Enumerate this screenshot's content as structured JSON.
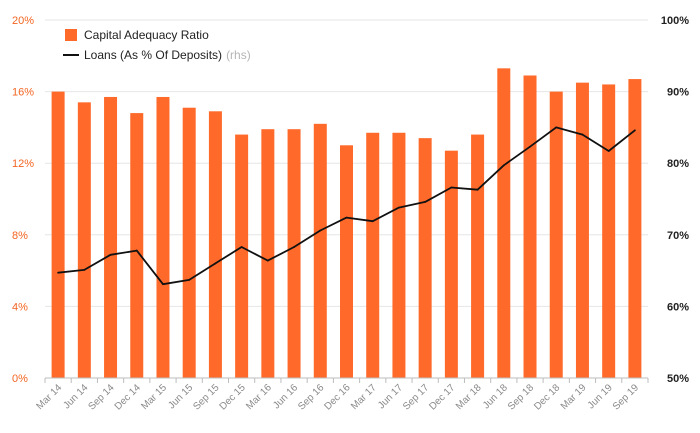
{
  "chart_data": {
    "type": "bar",
    "categories": [
      "Mar 14",
      "Jun 14",
      "Sep 14",
      "Dec 14",
      "Mar 15",
      "Jun 15",
      "Sep 15",
      "Dec 15",
      "Mar 16",
      "Jun 16",
      "Sep 16",
      "Dec 16",
      "Mar 17",
      "Jun 17",
      "Sep 17",
      "Dec 17",
      "Mar 18",
      "Jun 18",
      "Sep 18",
      "Dec 18",
      "Mar 19",
      "Jun 19",
      "Sep 19"
    ],
    "series": [
      {
        "name": "Capital Adequacy Ratio",
        "type": "bar",
        "axis": "left",
        "color": "#ff6a2b",
        "values": [
          16.0,
          15.4,
          15.7,
          14.8,
          15.7,
          15.1,
          14.9,
          13.6,
          13.9,
          13.9,
          14.2,
          13.0,
          13.7,
          13.7,
          13.4,
          12.7,
          13.6,
          17.3,
          16.9,
          16.0,
          16.5,
          16.4,
          16.7
        ]
      },
      {
        "name": "Loans (As % Of Deposits)",
        "type": "line",
        "axis": "right",
        "color": "#111111",
        "values": [
          64.7,
          65.1,
          67.2,
          67.8,
          63.1,
          63.7,
          66.0,
          68.3,
          66.4,
          68.3,
          70.6,
          72.4,
          71.9,
          73.8,
          74.6,
          76.6,
          76.3,
          79.7,
          82.3,
          85.0,
          84.0,
          81.7,
          84.6
        ]
      }
    ],
    "legend": {
      "position": "top-left",
      "bar_label": "Capital Adequacy Ratio",
      "line_label": "Loans (As % Of Deposits)",
      "line_note": "(rhs)"
    },
    "y_left": {
      "min": 0,
      "max": 20,
      "ticks": [
        "0%",
        "4%",
        "8%",
        "12%",
        "16%",
        "20%"
      ]
    },
    "y_right": {
      "min": 50,
      "max": 100,
      "ticks": [
        "50%",
        "60%",
        "70%",
        "80%",
        "90%",
        "100%"
      ]
    },
    "grid": true
  }
}
